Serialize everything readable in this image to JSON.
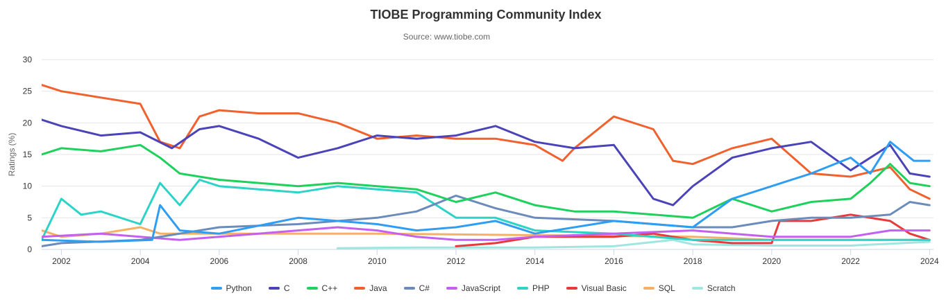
{
  "chart_data": {
    "type": "line",
    "title": "TIOBE Programming Community Index",
    "subtitle": "Source: www.tiobe.com",
    "ylabel": "Ratings (%)",
    "xlabel": "",
    "xlim": [
      2001.5,
      2024.1
    ],
    "ylim": [
      0,
      30
    ],
    "y_ticks": [
      0,
      5,
      10,
      15,
      20,
      25,
      30
    ],
    "x_ticks": [
      2002,
      2004,
      2006,
      2008,
      2010,
      2012,
      2014,
      2016,
      2018,
      2020,
      2022,
      2024
    ],
    "grid": true,
    "legend_position": "bottom",
    "series": [
      {
        "name": "Python",
        "color": "#2f9df2",
        "x": [
          2001.5,
          2003,
          2004.3,
          2004.5,
          2005,
          2006,
          2008,
          2010,
          2011,
          2012,
          2013,
          2014,
          2016,
          2018,
          2019,
          2020,
          2021,
          2022,
          2022.5,
          2023,
          2023.6,
          2024
        ],
        "values": [
          1.5,
          1.2,
          1.5,
          7.0,
          3.0,
          2.5,
          5.0,
          4.0,
          3.0,
          3.5,
          4.5,
          2.5,
          4.5,
          3.5,
          8.0,
          10.0,
          12.0,
          14.5,
          12.0,
          17.0,
          14.0,
          14.0
        ]
      },
      {
        "name": "C",
        "color": "#4b44b8",
        "x": [
          2001.5,
          2002,
          2003,
          2004,
          2004.8,
          2005.5,
          2006,
          2007,
          2008,
          2009,
          2010,
          2011,
          2012,
          2013,
          2014,
          2015,
          2016,
          2017,
          2017.5,
          2018,
          2019,
          2020,
          2021,
          2022,
          2023,
          2023.5,
          2024
        ],
        "values": [
          20.5,
          19.5,
          18.0,
          18.5,
          16.0,
          19.0,
          19.5,
          17.5,
          14.5,
          16.0,
          18.0,
          17.5,
          18.0,
          19.5,
          17.0,
          16.0,
          16.5,
          8.0,
          7.0,
          10.0,
          14.5,
          16.0,
          17.0,
          12.5,
          16.5,
          12.0,
          11.5
        ]
      },
      {
        "name": "C++",
        "color": "#1ed05c",
        "x": [
          2001.5,
          2002,
          2003,
          2004,
          2004.5,
          2005,
          2006,
          2007,
          2008,
          2009,
          2010,
          2011,
          2012,
          2013,
          2014,
          2015,
          2016,
          2017,
          2018,
          2019,
          2020,
          2021,
          2022,
          2022.5,
          2023,
          2023.5,
          2024
        ],
        "values": [
          15.0,
          16.0,
          15.5,
          16.5,
          14.5,
          12.0,
          11.0,
          10.5,
          10.0,
          10.5,
          10.0,
          9.5,
          7.5,
          9.0,
          7.0,
          6.0,
          6.0,
          5.5,
          5.0,
          8.0,
          6.0,
          7.5,
          8.0,
          10.5,
          13.5,
          10.5,
          10.0
        ]
      },
      {
        "name": "Java",
        "color": "#f0612e",
        "x": [
          2001.5,
          2002,
          2003,
          2004,
          2004.5,
          2005,
          2005.5,
          2006,
          2007,
          2008,
          2009,
          2010,
          2011,
          2012,
          2013,
          2014,
          2014.7,
          2015,
          2016,
          2017,
          2017.5,
          2018,
          2019,
          2020,
          2021,
          2022,
          2023,
          2023.5,
          2024
        ],
        "values": [
          26.0,
          25.0,
          24.0,
          23.0,
          17.0,
          16.0,
          21.0,
          22.0,
          21.5,
          21.5,
          20.0,
          17.5,
          18.0,
          17.5,
          17.5,
          16.5,
          14.0,
          16.0,
          21.0,
          19.0,
          14.0,
          13.5,
          16.0,
          17.5,
          12.0,
          11.5,
          13.0,
          9.5,
          8.0
        ]
      },
      {
        "name": "C#",
        "color": "#6b8bbb",
        "x": [
          2001.5,
          2002,
          2004,
          2005,
          2006,
          2008,
          2010,
          2011,
          2012,
          2013,
          2014,
          2016,
          2018,
          2019,
          2020,
          2021,
          2022,
          2023,
          2023.5,
          2024
        ],
        "values": [
          0.5,
          1.0,
          1.5,
          2.5,
          3.5,
          4.0,
          5.0,
          6.0,
          8.5,
          6.5,
          5.0,
          4.5,
          3.5,
          3.5,
          4.5,
          5.0,
          5.0,
          5.5,
          7.5,
          7.0
        ]
      },
      {
        "name": "JavaScript",
        "color": "#c460f0",
        "x": [
          2001.5,
          2003,
          2005,
          2007,
          2008,
          2009,
          2010,
          2011,
          2012,
          2013,
          2014,
          2016,
          2018,
          2019,
          2020,
          2021,
          2022,
          2023,
          2024
        ],
        "values": [
          2.0,
          2.5,
          1.5,
          2.5,
          3.0,
          3.5,
          3.0,
          2.0,
          1.5,
          1.5,
          2.0,
          2.5,
          3.0,
          2.5,
          2.0,
          2.0,
          2.0,
          3.0,
          3.0
        ]
      },
      {
        "name": "PHP",
        "color": "#2cd3c6",
        "x": [
          2001.5,
          2002,
          2002.5,
          2003,
          2004,
          2004.5,
          2005,
          2005.5,
          2006,
          2007,
          2008,
          2009,
          2010,
          2011,
          2012,
          2013,
          2014,
          2016,
          2018,
          2020,
          2022,
          2024
        ],
        "values": [
          1.5,
          8.0,
          5.5,
          6.0,
          4.0,
          10.5,
          7.0,
          11.0,
          10.0,
          9.5,
          9.0,
          10.0,
          9.5,
          9.0,
          5.0,
          5.0,
          3.0,
          2.5,
          1.5,
          1.5,
          1.5,
          1.5
        ]
      },
      {
        "name": "Visual Basic",
        "color": "#e8393b",
        "x": [
          2012,
          2013,
          2014,
          2015,
          2016,
          2017,
          2018,
          2019,
          2020,
          2020.2,
          2021,
          2022,
          2023,
          2023.5,
          2024
        ],
        "values": [
          0.5,
          1.0,
          2.0,
          2.0,
          2.0,
          2.5,
          1.5,
          1.0,
          1.0,
          4.5,
          4.5,
          5.5,
          4.5,
          2.5,
          1.5
        ]
      },
      {
        "name": "SQL",
        "color": "#f6b065",
        "x": [
          2001.5,
          2002,
          2003,
          2004,
          2004.5,
          2010,
          2018,
          2020,
          2022,
          2024
        ],
        "values": [
          3.0,
          2.0,
          2.5,
          3.5,
          2.5,
          2.5,
          2.0,
          1.5,
          1.5,
          1.5
        ]
      },
      {
        "name": "Scratch",
        "color": "#9fe6e0",
        "x": [
          2009,
          2011,
          2014,
          2016,
          2017.5,
          2018,
          2020,
          2022,
          2024
        ],
        "values": [
          0.2,
          0.3,
          0.3,
          0.5,
          1.5,
          0.8,
          0.6,
          0.6,
          1.2
        ]
      }
    ]
  }
}
